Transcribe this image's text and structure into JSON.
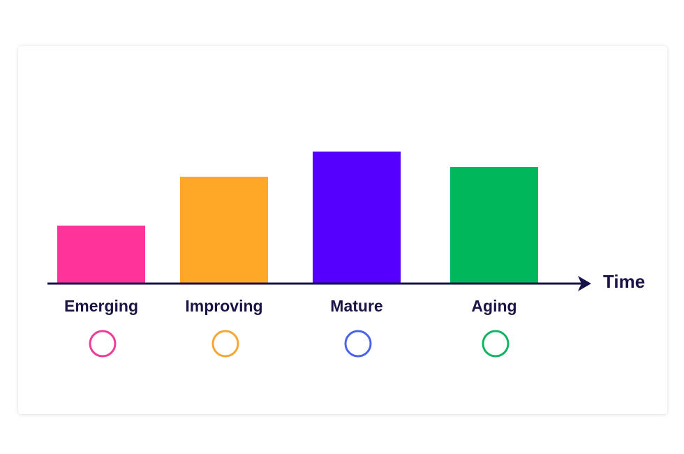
{
  "chart_data": {
    "type": "bar",
    "categories": [
      "Emerging",
      "Improving",
      "Mature",
      "Aging"
    ],
    "values": [
      41,
      76,
      94,
      83
    ],
    "xlabel": "Time",
    "colors": [
      "#ff3399",
      "#ffa726",
      "#5500ff",
      "#00b85c"
    ],
    "marker_colors": [
      "#ee3d97",
      "#f5a733",
      "#4a63e8",
      "#10b563"
    ],
    "axis_color": "#15114a",
    "ylim": [
      0,
      100
    ]
  }
}
